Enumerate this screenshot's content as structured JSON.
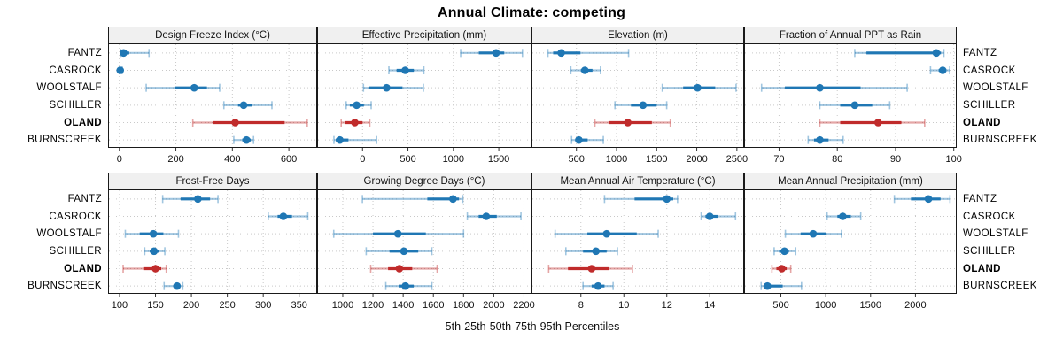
{
  "title": "Annual Climate: competing",
  "caption": "5th-25th-50th-75th-95th Percentiles",
  "sites": [
    "FANTZ",
    "CASROCK",
    "WOOLSTALF",
    "SCHILLER",
    "OLAND",
    "BURNSCREEK"
  ],
  "highlighted_site": "OLAND",
  "colors": {
    "series_normal": "#1f77b4",
    "series_normal_light": "rgba(31,119,180,0.42)",
    "series_highlight": "#c02b2b",
    "series_highlight_light": "rgba(192,43,43,0.42)",
    "strip_bg": "#f0f0f0",
    "panel_border": "#1a1a1a",
    "grid": "#c9c9c9",
    "tick": "#333333"
  },
  "chart_data": {
    "type": "trellis-dot-interval",
    "layout": "2 rows x 4 cols",
    "percentiles": [
      "5th",
      "25th",
      "50th",
      "75th",
      "95th"
    ],
    "panels": [
      {
        "title": "Design Freeze Index (°C)",
        "xlim": [
          -40,
          700
        ],
        "ticks": [
          0,
          200,
          400,
          600
        ],
        "values": {
          "FANTZ": [
            5,
            8,
            15,
            35,
            105
          ],
          "CASROCK": [
            0,
            1,
            3,
            6,
            10
          ],
          "WOOLSTALF": [
            95,
            195,
            265,
            310,
            355
          ],
          "SCHILLER": [
            370,
            420,
            440,
            470,
            540
          ],
          "OLAND": [
            260,
            330,
            410,
            585,
            665
          ],
          "BURNSCREEK": [
            405,
            435,
            450,
            465,
            475
          ]
        }
      },
      {
        "title": "Effective Precipitation (mm)",
        "xlim": [
          -500,
          1860
        ],
        "ticks": [
          0,
          500,
          1000,
          1500
        ],
        "values": {
          "FANTZ": [
            1080,
            1280,
            1470,
            1560,
            1760
          ],
          "CASROCK": [
            290,
            375,
            470,
            565,
            675
          ],
          "WOOLSTALF": [
            10,
            70,
            265,
            440,
            670
          ],
          "SCHILLER": [
            -180,
            -140,
            -65,
            15,
            95
          ],
          "OLAND": [
            -235,
            -190,
            -85,
            0,
            80
          ],
          "BURNSCREEK": [
            -315,
            -295,
            -250,
            -155,
            155
          ]
        }
      },
      {
        "title": "Elevation (m)",
        "xlim": [
          -60,
          2590
        ],
        "ticks": [
          500,
          1000,
          1500,
          2000,
          2500
        ],
        "values": {
          "FANTZ": [
            145,
            210,
            310,
            550,
            1150
          ],
          "CASROCK": [
            430,
            555,
            605,
            700,
            800
          ],
          "WOOLSTALF": [
            1570,
            1830,
            2010,
            2230,
            2490
          ],
          "SCHILLER": [
            980,
            1180,
            1330,
            1500,
            1625
          ],
          "OLAND": [
            730,
            900,
            1140,
            1440,
            1670
          ],
          "BURNSCREEK": [
            440,
            490,
            530,
            640,
            835
          ]
        }
      },
      {
        "title": "Fraction of Annual PPT as Rain",
        "xlim": [
          64,
          100.5
        ],
        "ticks": [
          70,
          80,
          90,
          100
        ],
        "values": {
          "FANTZ": [
            83,
            85,
            97,
            97.8,
            98.3
          ],
          "CASROCK": [
            96,
            97.4,
            98.1,
            98.7,
            99.3
          ],
          "WOOLSTALF": [
            67,
            71,
            77,
            84,
            92
          ],
          "SCHILLER": [
            77,
            80.5,
            83,
            86,
            89
          ],
          "OLAND": [
            77,
            80.5,
            87,
            91,
            95
          ],
          "BURNSCREEK": [
            75,
            76,
            77,
            78.5,
            81
          ]
        }
      },
      {
        "title": "Frost-Free Days",
        "xlim": [
          84,
          375
        ],
        "ticks": [
          100,
          150,
          200,
          250,
          300,
          350
        ],
        "values": {
          "FANTZ": [
            160,
            185,
            209,
            226,
            237
          ],
          "CASROCK": [
            307,
            320,
            328,
            340,
            362
          ],
          "WOOLSTALF": [
            108,
            128,
            147,
            161,
            182
          ],
          "SCHILLER": [
            135,
            142,
            148,
            155,
            163
          ],
          "OLAND": [
            105,
            133,
            150,
            158,
            165
          ],
          "BURNSCREEK": [
            162,
            175,
            180,
            184,
            188
          ]
        }
      },
      {
        "title": "Growing Degree Days (°C)",
        "xlim": [
          830,
          2250
        ],
        "ticks": [
          1000,
          1200,
          1400,
          1600,
          1800,
          2000,
          2200
        ],
        "values": {
          "FANTZ": [
            1130,
            1560,
            1730,
            1770,
            1795
          ],
          "CASROCK": [
            1825,
            1900,
            1950,
            2020,
            2180
          ],
          "WOOLSTALF": [
            940,
            1200,
            1365,
            1550,
            1800
          ],
          "SCHILLER": [
            1155,
            1310,
            1405,
            1500,
            1590
          ],
          "OLAND": [
            1185,
            1300,
            1375,
            1460,
            1625
          ],
          "BURNSCREEK": [
            1285,
            1370,
            1415,
            1470,
            1590
          ]
        }
      },
      {
        "title": "Mean Annual Air Temperature (°C)",
        "xlim": [
          5.7,
          15.6
        ],
        "ticks": [
          8,
          10,
          12,
          14
        ],
        "values": {
          "FANTZ": [
            9.1,
            10.5,
            12.0,
            12.3,
            12.5
          ],
          "CASROCK": [
            13.6,
            13.8,
            14.0,
            14.4,
            15.2
          ],
          "WOOLSTALF": [
            6.8,
            8.3,
            9.2,
            10.6,
            11.6
          ],
          "SCHILLER": [
            7.3,
            8.1,
            8.7,
            9.2,
            9.7
          ],
          "OLAND": [
            6.5,
            7.4,
            8.5,
            9.3,
            10.4
          ],
          "BURNSCREEK": [
            8.1,
            8.5,
            8.8,
            9.1,
            9.5
          ]
        }
      },
      {
        "title": "Mean Annual Precipitation (mm)",
        "xlim": [
          90,
          2460
        ],
        "ticks": [
          500,
          1000,
          1500,
          2000
        ],
        "values": {
          "FANTZ": [
            1765,
            1950,
            2145,
            2280,
            2385
          ],
          "CASROCK": [
            1015,
            1130,
            1190,
            1280,
            1390
          ],
          "WOOLSTALF": [
            550,
            720,
            860,
            1000,
            1175
          ],
          "SCHILLER": [
            425,
            480,
            540,
            590,
            665
          ],
          "OLAND": [
            400,
            450,
            510,
            565,
            610
          ],
          "BURNSCREEK": [
            280,
            320,
            350,
            520,
            730
          ]
        }
      }
    ]
  }
}
